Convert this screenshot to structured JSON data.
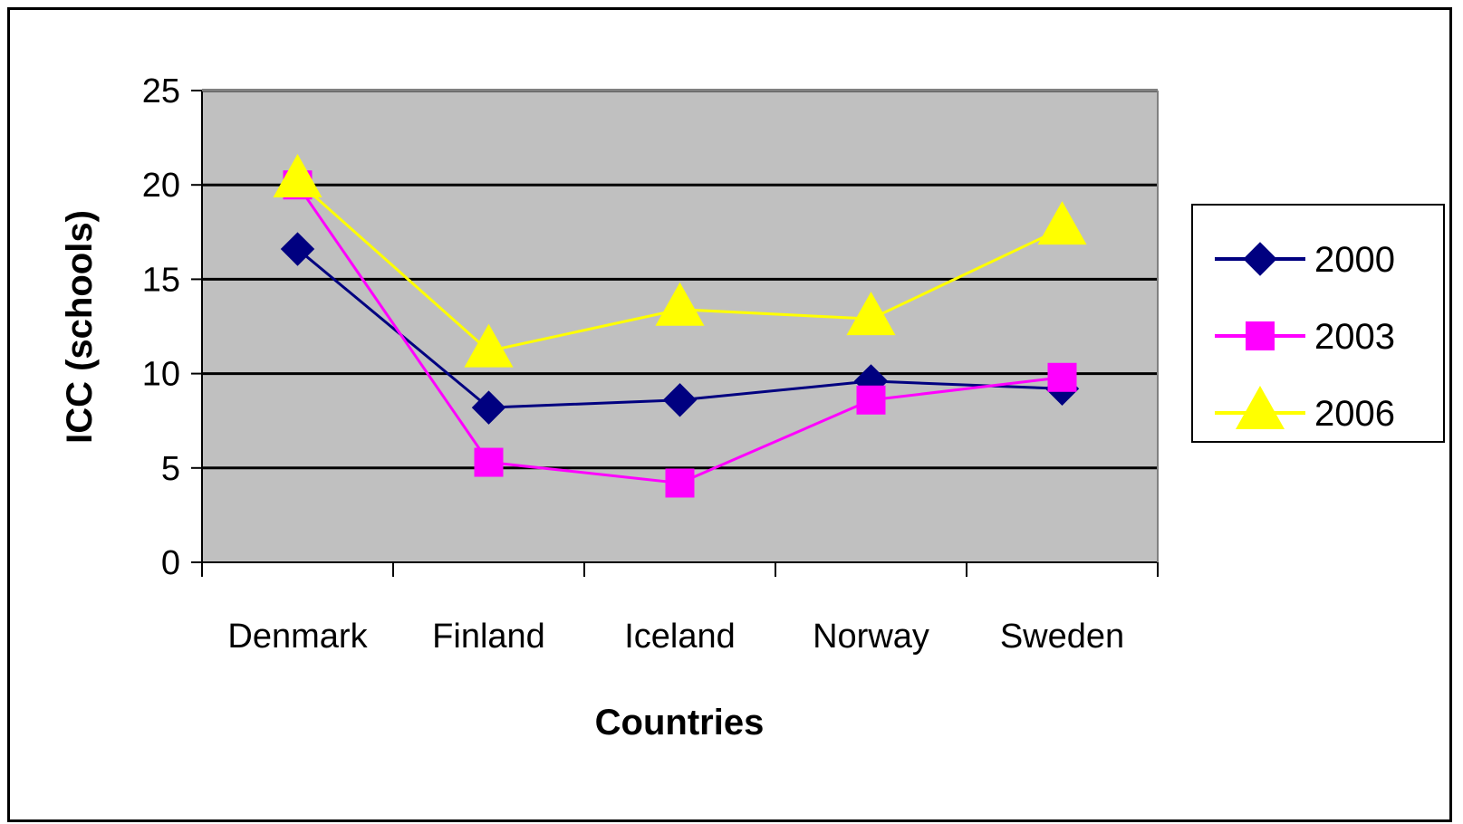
{
  "chart_data": {
    "type": "line",
    "categories": [
      "Denmark",
      "Finland",
      "Iceland",
      "Norway",
      "Sweden"
    ],
    "series": [
      {
        "name": "2000",
        "values": [
          16.6,
          8.2,
          8.6,
          9.6,
          9.2
        ],
        "color": "#000080",
        "marker": "diamond"
      },
      {
        "name": "2003",
        "values": [
          20.0,
          5.3,
          4.2,
          8.6,
          9.8
        ],
        "color": "#FF00FF",
        "marker": "square"
      },
      {
        "name": "2006",
        "values": [
          20.2,
          11.2,
          13.4,
          12.9,
          17.7
        ],
        "color": "#FFFF00",
        "marker": "triangle"
      }
    ],
    "xlabel": "Countries",
    "ylabel": "ICC (schools)",
    "ylim": [
      0,
      25
    ],
    "yticks": [
      "0",
      "5",
      "10",
      "15",
      "20",
      "25"
    ],
    "grid": true,
    "plot_background": "#C0C0C0",
    "legend_position": "right"
  }
}
